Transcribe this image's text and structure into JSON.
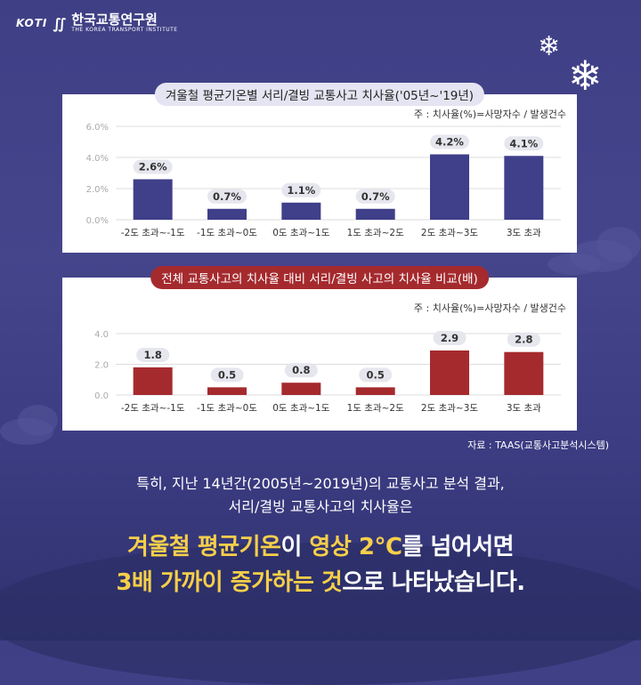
{
  "header": {
    "logo_mark": "KOTI",
    "logo_kr": "한국교통연구원",
    "logo_en": "THE KOREA TRANSPORT INSTITUTE"
  },
  "chart_data": [
    {
      "type": "bar",
      "title": "겨울철 평균기온별 서리/결빙 교통사고 치사율('05년~'19년)",
      "note": "주 : 치사율(%)=사망자수 / 발생건수",
      "categories": [
        "-2도 초과~-1도",
        "-1도 초과~0도",
        "0도 초과~1도",
        "1도 초과~2도",
        "2도 초과~3도",
        "3도 초과"
      ],
      "values": [
        2.6,
        0.7,
        1.1,
        0.7,
        4.2,
        4.1
      ],
      "value_labels": [
        "2.6%",
        "0.7%",
        "1.1%",
        "0.7%",
        "4.2%",
        "4.1%"
      ],
      "yticks": [
        "0.0%",
        "2.0%",
        "4.0%",
        "6.0%"
      ],
      "ylim": [
        0,
        6
      ],
      "color": "#3f3f8a",
      "grid": true
    },
    {
      "type": "bar",
      "title": "전체 교통사고의 치사율 대비 서리/결빙 사고의 치사율 비교(배)",
      "note": "주 : 치사율(%)=사망자수 / 발생건수",
      "categories": [
        "-2도 초과~-1도",
        "-1도 초과~0도",
        "0도 초과~1도",
        "1도 초과~2도",
        "2도 초과~3도",
        "3도 초과"
      ],
      "values": [
        1.8,
        0.5,
        0.8,
        0.5,
        2.9,
        2.8
      ],
      "value_labels": [
        "1.8",
        "0.5",
        "0.8",
        "0.5",
        "2.9",
        "2.8"
      ],
      "yticks": [
        "0.0",
        "2.0",
        "4.0"
      ],
      "ylim": [
        0,
        4
      ],
      "color": "#a52a2e",
      "grid": true
    }
  ],
  "source": "자료 : TAAS(교통사고분석시스템)",
  "body": {
    "line1": "특히, 지난 14년간(2005년~2019년)의 교통사고 분석 결과,",
    "line2": "서리/결빙 교통사고의 치사율은",
    "headline1_a": "겨울철 평균기온",
    "headline1_b": "이 ",
    "headline1_c": "영상 2℃",
    "headline1_d": "를 넘어서면",
    "headline2_a": "3배 가까이 증가하는 것",
    "headline2_b": "으로 나타났습니다."
  },
  "colors": {
    "background": "#43438a",
    "accent_yellow": "#f6cf4a",
    "bar_blue": "#3f3f8a",
    "bar_red": "#a52a2e"
  }
}
